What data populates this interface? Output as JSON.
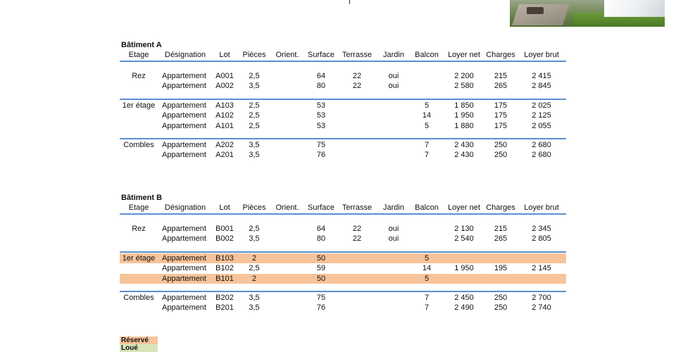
{
  "columns": [
    "Etage",
    "Désignation",
    "Lot",
    "Pièces",
    "Orient.",
    "Surface",
    "Terrasse",
    "Jardin",
    "Balcon",
    "Loyer net",
    "Charges",
    "Loyer brut"
  ],
  "colors": {
    "rule": "#5b8fd0",
    "reserve": "#f7c39a",
    "loue": "#d6e6b8"
  },
  "buildings": [
    {
      "title": "Bâtiment A",
      "groups": [
        {
          "rows": [
            {
              "etage": "Rez",
              "designation": "Appartement",
              "lot": "A001",
              "pieces": "2,5",
              "orient": "",
              "surface": "64",
              "terrasse": "22",
              "jardin": "oui",
              "balcon": "",
              "loyer_net": "2 200",
              "charges": "215",
              "loyer_brut": "2 415",
              "status": ""
            },
            {
              "etage": "",
              "designation": "Appartement",
              "lot": "A002",
              "pieces": "3,5",
              "orient": "",
              "surface": "80",
              "terrasse": "22",
              "jardin": "oui",
              "balcon": "",
              "loyer_net": "2 580",
              "charges": "265",
              "loyer_brut": "2 845",
              "status": ""
            }
          ]
        },
        {
          "rows": [
            {
              "etage": "1er étage",
              "designation": "Appartement",
              "lot": "A103",
              "pieces": "2,5",
              "orient": "",
              "surface": "53",
              "terrasse": "",
              "jardin": "",
              "balcon": "5",
              "loyer_net": "1 850",
              "charges": "175",
              "loyer_brut": "2 025",
              "status": ""
            },
            {
              "etage": "",
              "designation": "Appartement",
              "lot": "A102",
              "pieces": "2,5",
              "orient": "",
              "surface": "53",
              "terrasse": "",
              "jardin": "",
              "balcon": "14",
              "loyer_net": "1 950",
              "charges": "175",
              "loyer_brut": "2 125",
              "status": ""
            },
            {
              "etage": "",
              "designation": "Appartement",
              "lot": "A101",
              "pieces": "2,5",
              "orient": "",
              "surface": "53",
              "terrasse": "",
              "jardin": "",
              "balcon": "5",
              "loyer_net": "1 880",
              "charges": "175",
              "loyer_brut": "2 055",
              "status": ""
            }
          ]
        },
        {
          "rows": [
            {
              "etage": "Combles",
              "designation": "Appartement",
              "lot": "A202",
              "pieces": "3,5",
              "orient": "",
              "surface": "75",
              "terrasse": "",
              "jardin": "",
              "balcon": "7",
              "loyer_net": "2 430",
              "charges": "250",
              "loyer_brut": "2 680",
              "status": ""
            },
            {
              "etage": "",
              "designation": "Appartement",
              "lot": "A201",
              "pieces": "3,5",
              "orient": "",
              "surface": "76",
              "terrasse": "",
              "jardin": "",
              "balcon": "7",
              "loyer_net": "2 430",
              "charges": "250",
              "loyer_brut": "2 680",
              "status": ""
            }
          ]
        }
      ]
    },
    {
      "title": "Bâtiment B",
      "groups": [
        {
          "rows": [
            {
              "etage": "Rez",
              "designation": "Appartement",
              "lot": "B001",
              "pieces": "2,5",
              "orient": "",
              "surface": "64",
              "terrasse": "22",
              "jardin": "oui",
              "balcon": "",
              "loyer_net": "2 130",
              "charges": "215",
              "loyer_brut": "2 345",
              "status": ""
            },
            {
              "etage": "",
              "designation": "Appartement",
              "lot": "B002",
              "pieces": "3,5",
              "orient": "",
              "surface": "80",
              "terrasse": "22",
              "jardin": "oui",
              "balcon": "",
              "loyer_net": "2 540",
              "charges": "265",
              "loyer_brut": "2 805",
              "status": ""
            }
          ]
        },
        {
          "rows": [
            {
              "etage": "1er étage",
              "designation": "Appartement",
              "lot": "B103",
              "pieces": "2",
              "orient": "",
              "surface": "50",
              "terrasse": "",
              "jardin": "",
              "balcon": "5",
              "loyer_net": "",
              "charges": "",
              "loyer_brut": "",
              "status": "reserve"
            },
            {
              "etage": "",
              "designation": "Appartement",
              "lot": "B102",
              "pieces": "2,5",
              "orient": "",
              "surface": "59",
              "terrasse": "",
              "jardin": "",
              "balcon": "14",
              "loyer_net": "1 950",
              "charges": "195",
              "loyer_brut": "2 145",
              "status": ""
            },
            {
              "etage": "",
              "designation": "Appartement",
              "lot": "B101",
              "pieces": "2",
              "orient": "",
              "surface": "50",
              "terrasse": "",
              "jardin": "",
              "balcon": "5",
              "loyer_net": "",
              "charges": "",
              "loyer_brut": "",
              "status": "reserve"
            }
          ]
        },
        {
          "rows": [
            {
              "etage": "Combles",
              "designation": "Appartement",
              "lot": "B202",
              "pieces": "3,5",
              "orient": "",
              "surface": "75",
              "terrasse": "",
              "jardin": "",
              "balcon": "7",
              "loyer_net": "2 450",
              "charges": "250",
              "loyer_brut": "2 700",
              "status": ""
            },
            {
              "etage": "",
              "designation": "Appartement",
              "lot": "B201",
              "pieces": "3,5",
              "orient": "",
              "surface": "76",
              "terrasse": "",
              "jardin": "",
              "balcon": "7",
              "loyer_net": "2 490",
              "charges": "250",
              "loyer_brut": "2 740",
              "status": ""
            }
          ]
        }
      ]
    }
  ],
  "legend": {
    "reserve": "Réservé",
    "loue": "Loué"
  }
}
